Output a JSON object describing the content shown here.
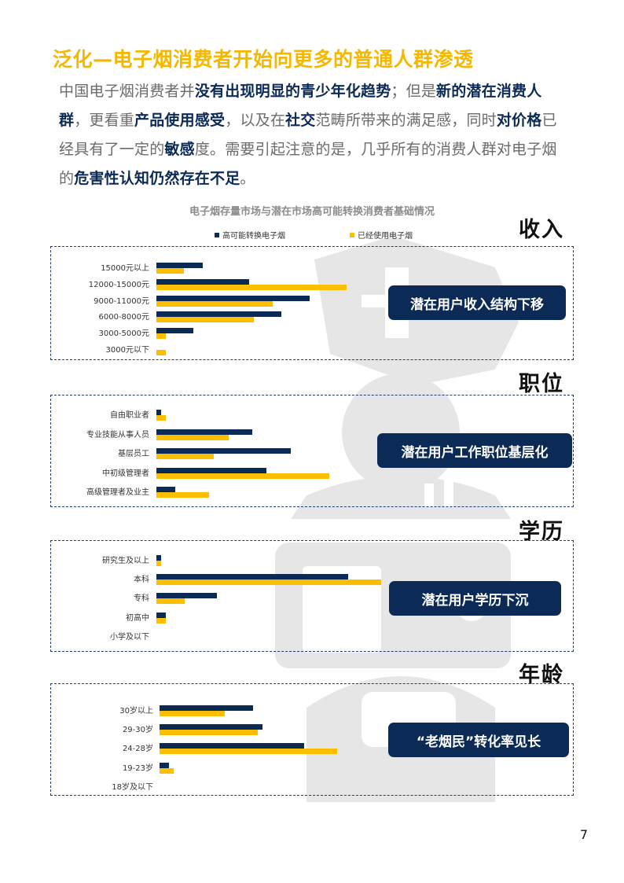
{
  "title": "泛化—电子烟消费者开始向更多的普通人群渗透",
  "paragraph": [
    {
      "t": "中国电子烟消费者并",
      "b": false
    },
    {
      "t": "没有出现明显的青少年化趋势",
      "b": true
    },
    {
      "t": "；但是",
      "b": false
    },
    {
      "t": "新的潜在消费人群",
      "b": true
    },
    {
      "t": "，更看重",
      "b": false
    },
    {
      "t": "产品使用感受",
      "b": true
    },
    {
      "t": "，以及在",
      "b": false
    },
    {
      "t": "社交",
      "b": true
    },
    {
      "t": "范畴所带来的满足感，同时",
      "b": false
    },
    {
      "t": "对价格",
      "b": true
    },
    {
      "t": "已经具有了一定的",
      "b": false
    },
    {
      "t": "敏感",
      "b": true
    },
    {
      "t": "度。需要引起注意的是，几乎所有的消费人群对电子烟的",
      "b": false
    },
    {
      "t": "危害性认知仍然存在不足",
      "b": true
    },
    {
      "t": "。",
      "b": false
    }
  ],
  "chart_title": "电子烟存量市场与潜在市场高可能转换消费者基础情况",
  "legend": {
    "navy": "高可能转换电子烟",
    "gold": "已经使用电子烟"
  },
  "colors": {
    "navy": "#0b2a55",
    "gold": "#fbbf00",
    "title": "#f5b800"
  },
  "page_number": "7",
  "sections": [
    {
      "heading": "收入",
      "callout": "潜在用户收入结构下移"
    },
    {
      "heading": "职位",
      "callout": "潜在用户工作职位基层化"
    },
    {
      "heading": "学历",
      "callout": "潜在用户学历下沉"
    },
    {
      "heading": "年龄",
      "callout": "“老烟民”转化率见长"
    }
  ],
  "chart_data": [
    {
      "type": "bar",
      "orientation": "horizontal",
      "categories": [
        "15000元以上",
        "12000-15000元",
        "9000-11000元",
        "6000-8000元",
        "3000-5000元",
        "3000元以下"
      ],
      "series": [
        {
          "name": "高可能转换电子烟",
          "values": [
            10,
            20,
            33,
            27,
            8,
            0
          ]
        },
        {
          "name": "已经使用电子烟",
          "values": [
            6,
            41,
            25,
            21,
            2,
            2
          ]
        }
      ]
    },
    {
      "type": "bar",
      "orientation": "horizontal",
      "categories": [
        "自由职业者",
        "专业技能从事人员",
        "基层员工",
        "中初级管理者",
        "高级管理者及业主"
      ],
      "series": [
        {
          "name": "高可能转换电子烟",
          "values": [
            1,
            20,
            28,
            23,
            4
          ]
        },
        {
          "name": "已经使用电子烟",
          "values": [
            2,
            15,
            12,
            36,
            11
          ]
        }
      ]
    },
    {
      "type": "bar",
      "orientation": "horizontal",
      "categories": [
        "研究生及以上",
        "本科",
        "专科",
        "初高中",
        "小学及以下"
      ],
      "series": [
        {
          "name": "高可能转换电子烟",
          "values": [
            1,
            41,
            13,
            2,
            0
          ]
        },
        {
          "name": "已经使用电子烟",
          "values": [
            1,
            48,
            6,
            2,
            0
          ]
        }
      ]
    },
    {
      "type": "bar",
      "orientation": "horizontal",
      "categories": [
        "30岁以上",
        "29-30岁",
        "24-28岁",
        "19-23岁",
        "18岁及以下"
      ],
      "series": [
        {
          "name": "高可能转换电子烟",
          "values": [
            20,
            22,
            31,
            2,
            0
          ]
        },
        {
          "name": "已经使用电子烟",
          "values": [
            14,
            21,
            38,
            3,
            0
          ]
        }
      ]
    }
  ]
}
